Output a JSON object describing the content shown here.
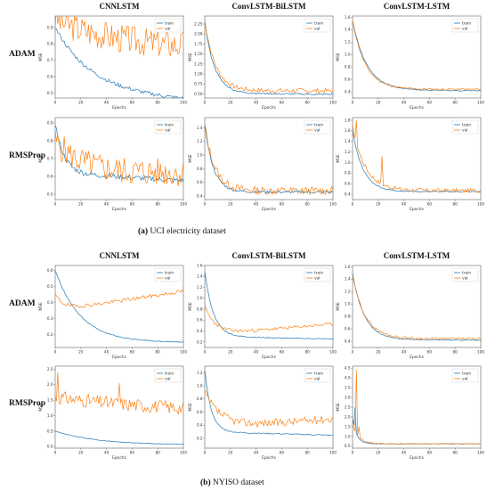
{
  "columns": [
    "CNNLSTM",
    "ConvLSTM-BiLSTM",
    "ConvLSTM-LSTM"
  ],
  "rows": [
    "ADAM",
    "RMSProp"
  ],
  "captions": [
    {
      "label": "(a)",
      "text": " UCI electricity dataset"
    },
    {
      "label": "(b)",
      "text": " NYISO dataset"
    }
  ],
  "colors": {
    "train": "#1f77b4",
    "val": "#ff7f0e"
  },
  "chart_data": [
    {
      "panel": "a",
      "row": "ADAM",
      "col": "CNNLSTM",
      "type": "line",
      "xlabel": "Epochs",
      "ylabel": "MSE",
      "xlim": [
        0,
        100
      ],
      "ylim": [
        0.47,
        0.97
      ],
      "xticks": [
        0,
        20,
        40,
        60,
        80,
        100
      ],
      "yticks": [
        0.5,
        0.6,
        0.7,
        0.8,
        0.9
      ],
      "legend": [
        "train",
        "val"
      ],
      "legend_position": "top-right",
      "train": {
        "start": 0.9,
        "end": 0.5,
        "k": 0.035,
        "tailSlope": 0.0015,
        "noise": 0.012
      },
      "val": {
        "start": 0.95,
        "end": 0.77,
        "k": 0.02,
        "noise": 0.09,
        "seed": 3
      }
    },
    {
      "panel": "a",
      "row": "ADAM",
      "col": "ConvLSTM-BiLSTM",
      "type": "line",
      "xlabel": "Epochs",
      "ylabel": "MSE",
      "xlim": [
        0,
        100
      ],
      "ylim": [
        0.4,
        2.45
      ],
      "xticks": [
        0,
        20,
        40,
        60,
        80,
        100
      ],
      "yticks": [
        0.5,
        0.75,
        1.0,
        1.25,
        1.5,
        1.75,
        2.0,
        2.25
      ],
      "legend": [
        "train",
        "val"
      ],
      "legend_position": "top-right",
      "train": {
        "start": 2.3,
        "end": 0.52,
        "k": 0.13,
        "tailSlope": 0.001,
        "noise": 0.02
      },
      "val": {
        "start": 2.35,
        "end": 0.58,
        "k": 0.12,
        "noise": 0.06,
        "seed": 7
      }
    },
    {
      "panel": "a",
      "row": "ADAM",
      "col": "ConvLSTM-LSTM",
      "type": "line",
      "xlabel": "Epochs",
      "ylabel": "MSE",
      "xlim": [
        0,
        100
      ],
      "ylim": [
        0.3,
        1.62
      ],
      "xticks": [
        0,
        20,
        40,
        60,
        80,
        100
      ],
      "yticks": [
        0.4,
        0.6,
        0.8,
        1.0,
        1.2,
        1.4,
        1.6
      ],
      "legend": [
        "train",
        "val"
      ],
      "legend_position": "top-right",
      "train": {
        "start": 1.55,
        "end": 0.43,
        "k": 0.09,
        "tailSlope": 0.0005,
        "noise": 0.008
      },
      "val": {
        "start": 1.55,
        "end": 0.44,
        "k": 0.1,
        "noise": 0.015,
        "seed": 11
      }
    },
    {
      "panel": "a",
      "row": "RMSProp",
      "col": "CNNLSTM",
      "type": "line",
      "xlabel": "Epochs",
      "ylabel": "MSE",
      "xlim": [
        0,
        100
      ],
      "ylim": [
        0.47,
        0.93
      ],
      "xticks": [
        0,
        20,
        40,
        60,
        80,
        100
      ],
      "yticks": [
        0.5,
        0.6,
        0.7,
        0.8,
        0.9
      ],
      "legend": [
        "train",
        "val"
      ],
      "legend_position": "top-right",
      "train": {
        "start": 0.9,
        "end": 0.62,
        "k": 0.15,
        "tailSlope": 0.0015,
        "noise": 0.015
      },
      "val": {
        "start": 0.8,
        "end": 0.62,
        "k": 0.05,
        "noise": 0.08,
        "seed": 5
      }
    },
    {
      "panel": "a",
      "row": "RMSProp",
      "col": "ConvLSTM-BiLSTM",
      "type": "line",
      "xlabel": "Epochs",
      "ylabel": "MSE",
      "xlim": [
        0,
        100
      ],
      "ylim": [
        0.35,
        1.55
      ],
      "xticks": [
        0,
        20,
        40,
        60,
        80,
        100
      ],
      "yticks": [
        0.4,
        0.6,
        0.8,
        1.0,
        1.2,
        1.4
      ],
      "legend": [
        "train",
        "val"
      ],
      "legend_position": "top-right",
      "train": {
        "start": 1.45,
        "end": 0.46,
        "k": 0.15,
        "tailSlope": 0.0,
        "noise": 0.02
      },
      "val": {
        "start": 1.45,
        "end": 0.48,
        "k": 0.13,
        "noise": 0.06,
        "seed": 13
      }
    },
    {
      "panel": "a",
      "row": "RMSProp",
      "col": "ConvLSTM-LSTM",
      "type": "line",
      "xlabel": "Epochs",
      "ylabel": "MSE",
      "xlim": [
        0,
        100
      ],
      "ylim": [
        0.3,
        1.85
      ],
      "xticks": [
        0,
        20,
        40,
        60,
        80,
        100
      ],
      "yticks": [
        0.4,
        0.6,
        0.8,
        1.0,
        1.2,
        1.4,
        1.6,
        1.8
      ],
      "legend": [
        "train",
        "val"
      ],
      "legend_position": "top-right",
      "train": {
        "start": 1.6,
        "end": 0.45,
        "k": 0.12,
        "tailSlope": 0.0,
        "noise": 0.01
      },
      "val": {
        "start": 1.7,
        "end": 0.47,
        "k": 0.1,
        "noise": 0.04,
        "seed": 17,
        "spikes": [
          [
            3,
            1.8
          ],
          [
            23,
            1.12
          ]
        ]
      }
    },
    {
      "panel": "b",
      "row": "ADAM",
      "col": "CNNLSTM",
      "type": "line",
      "xlabel": "Epochs",
      "ylabel": "MSE",
      "xlim": [
        0,
        100
      ],
      "ylim": [
        0.12,
        0.63
      ],
      "xticks": [
        0,
        20,
        40,
        60,
        80,
        100
      ],
      "yticks": [
        0.2,
        0.3,
        0.4,
        0.5,
        0.6
      ],
      "legend": [
        "train",
        "val"
      ],
      "legend_position": "top-right",
      "train": {
        "start": 0.6,
        "end": 0.15,
        "k": 0.05,
        "tailSlope": 0.0,
        "noise": 0.003
      },
      "val": {
        "start": 0.45,
        "end": 0.35,
        "k": 0.15,
        "riseSlope": 0.0012,
        "noise": 0.012,
        "seed": 19
      }
    },
    {
      "panel": "b",
      "row": "ADAM",
      "col": "ConvLSTM-BiLSTM",
      "type": "line",
      "xlabel": "Epochs",
      "ylabel": "MSE",
      "xlim": [
        0,
        100
      ],
      "ylim": [
        0.1,
        1.6
      ],
      "xticks": [
        0,
        20,
        40,
        60,
        80,
        100
      ],
      "yticks": [
        0.2,
        0.4,
        0.6,
        0.8,
        1.0,
        1.2,
        1.4,
        1.6
      ],
      "legend": [
        "train",
        "val"
      ],
      "legend_position": "top-right",
      "train": {
        "start": 1.5,
        "end": 0.3,
        "k": 0.15,
        "tailSlope": 0.0015,
        "noise": 0.008
      },
      "val": {
        "start": 0.85,
        "end": 0.33,
        "k": 0.12,
        "riseSlope": 0.002,
        "noise": 0.03,
        "seed": 23
      }
    },
    {
      "panel": "b",
      "row": "ADAM",
      "col": "ConvLSTM-LSTM",
      "type": "line",
      "xlabel": "Epochs",
      "ylabel": "MSE",
      "xlim": [
        0,
        100
      ],
      "ylim": [
        0.3,
        1.62
      ],
      "xticks": [
        0,
        20,
        40,
        60,
        80,
        100
      ],
      "yticks": [
        0.4,
        0.6,
        0.8,
        1.0,
        1.2,
        1.4,
        1.6
      ],
      "legend": [
        "train",
        "val"
      ],
      "legend_position": "top-right",
      "train": {
        "start": 1.5,
        "end": 0.43,
        "k": 0.11,
        "tailSlope": 0.0005,
        "noise": 0.006
      },
      "val": {
        "start": 1.45,
        "end": 0.44,
        "k": 0.1,
        "noise": 0.02,
        "seed": 29
      }
    },
    {
      "panel": "b",
      "row": "RMSProp",
      "col": "CNNLSTM",
      "type": "line",
      "xlabel": "Epochs",
      "ylabel": "MSE",
      "xlim": [
        0,
        100
      ],
      "ylim": [
        -0.05,
        2.6
      ],
      "xticks": [
        0,
        20,
        40,
        60,
        80,
        100
      ],
      "yticks": [
        0.0,
        0.5,
        1.0,
        1.5,
        2.0,
        2.5
      ],
      "legend": [
        "train",
        "val"
      ],
      "legend_position": "top-right",
      "train": {
        "start": 0.5,
        "end": 0.05,
        "k": 0.03,
        "tailSlope": 0.0,
        "noise": 0.01
      },
      "val": {
        "start": 1.6,
        "end": 1.05,
        "k": 0.01,
        "noise": 0.22,
        "seed": 31,
        "spikes": [
          [
            2,
            2.4
          ],
          [
            50,
            2.05
          ]
        ]
      }
    },
    {
      "panel": "b",
      "row": "RMSProp",
      "col": "ConvLSTM-BiLSTM",
      "type": "line",
      "xlabel": "Epochs",
      "ylabel": "MSE",
      "xlim": [
        0,
        100
      ],
      "ylim": [
        0.05,
        1.3
      ],
      "xticks": [
        0,
        20,
        40,
        60,
        80,
        100
      ],
      "yticks": [
        0.2,
        0.4,
        0.6,
        0.8,
        1.0,
        1.2
      ],
      "legend": [
        "train",
        "val"
      ],
      "legend_position": "top-right",
      "train": {
        "start": 1.25,
        "end": 0.3,
        "k": 0.2,
        "tailSlope": 0.0018,
        "noise": 0.008
      },
      "val": {
        "start": 0.9,
        "end": 0.35,
        "k": 0.08,
        "riseSlope": 0.0015,
        "noise": 0.06,
        "seed": 37
      }
    },
    {
      "panel": "b",
      "row": "RMSProp",
      "col": "ConvLSTM-LSTM",
      "type": "line",
      "xlabel": "Epochs",
      "ylabel": "MSE",
      "xlim": [
        0,
        100
      ],
      "ylim": [
        0.4,
        4.6
      ],
      "xticks": [
        0,
        20,
        40,
        60,
        80,
        100
      ],
      "yticks": [
        0.5,
        1.0,
        1.5,
        2.0,
        2.5,
        3.0,
        3.5,
        4.0,
        4.5
      ],
      "legend": [
        "train",
        "val"
      ],
      "legend_position": "top-right",
      "train": {
        "start": 1.9,
        "end": 0.62,
        "k": 0.3,
        "tailSlope": 0.0,
        "noise": 0.01,
        "spikes": [
          [
            2,
            2.5
          ]
        ]
      },
      "val": {
        "start": 1.6,
        "end": 0.62,
        "k": 0.2,
        "noise": 0.03,
        "seed": 41,
        "spikes": [
          [
            3,
            4.4
          ],
          [
            5,
            1.5
          ]
        ]
      }
    }
  ]
}
